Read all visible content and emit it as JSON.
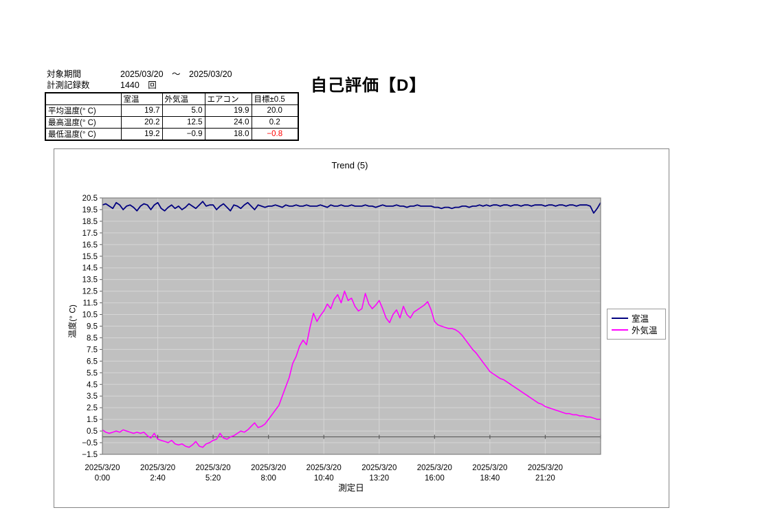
{
  "header": {
    "period_label": "対象期間",
    "period_value": "2025/03/20　～　2025/03/20",
    "count_label": "計測記録数",
    "count_value": "1440　回",
    "evaluation_title": "自己評価【D】"
  },
  "stats_table": {
    "columns": [
      "",
      "室温",
      "外気温",
      "エアコン",
      "目標±0.5"
    ],
    "rows": [
      {
        "label": "平均温度(° C)",
        "values": [
          "19.7",
          "5.0",
          "19.9",
          "20.0"
        ]
      },
      {
        "label": "最高温度(° C)",
        "values": [
          "20.2",
          "12.5",
          "24.0",
          "0.2"
        ]
      },
      {
        "label": "最低温度(° C)",
        "values": [
          "19.2",
          "−0.9",
          "18.0",
          "−0.8"
        ]
      }
    ],
    "highlight_color": "#ccffcc",
    "negative_color": "#ff0000"
  },
  "chart_data": {
    "type": "line",
    "title": "Trend (5)",
    "xlabel": "測定日",
    "ylabel": "温度(° C)",
    "ylim": [
      -1.5,
      20.5
    ],
    "y_tick_step": 1.0,
    "x_range_minutes": [
      0,
      1440
    ],
    "x_step_minutes": 10,
    "x_ticks": [
      {
        "date": "2025/3/20",
        "time": "0:00",
        "minutes": 0
      },
      {
        "date": "2025/3/20",
        "time": "2:40",
        "minutes": 160
      },
      {
        "date": "2025/3/20",
        "time": "5:20",
        "minutes": 320
      },
      {
        "date": "2025/3/20",
        "time": "8:00",
        "minutes": 480
      },
      {
        "date": "2025/3/20",
        "time": "10:40",
        "minutes": 640
      },
      {
        "date": "2025/3/20",
        "time": "13:20",
        "minutes": 800
      },
      {
        "date": "2025/3/20",
        "time": "16:00",
        "minutes": 960
      },
      {
        "date": "2025/3/20",
        "time": "18:40",
        "minutes": 1120
      },
      {
        "date": "2025/3/20",
        "time": "21:20",
        "minutes": 1280
      }
    ],
    "grid": true,
    "legend_position": "right",
    "plot_bg": "#c0c0c0",
    "grid_color": "#d6d6d6",
    "border_color": "#828282",
    "zero_axis_color": "#5c5c5c",
    "series": [
      {
        "name": "室温",
        "color": "#000080",
        "values": [
          19.9,
          20.0,
          19.8,
          19.6,
          20.1,
          19.9,
          19.5,
          19.8,
          19.9,
          19.7,
          19.4,
          19.8,
          20.0,
          19.9,
          19.5,
          19.9,
          20.1,
          19.6,
          19.4,
          19.7,
          19.9,
          19.6,
          19.8,
          19.5,
          19.7,
          20.0,
          19.8,
          19.6,
          19.9,
          20.2,
          19.8,
          19.9,
          19.9,
          19.5,
          19.8,
          20.0,
          19.7,
          19.4,
          19.9,
          19.8,
          19.6,
          19.9,
          20.1,
          19.8,
          19.5,
          19.9,
          19.8,
          19.7,
          19.8,
          19.8,
          19.9,
          19.8,
          19.7,
          19.9,
          19.8,
          19.8,
          19.9,
          19.8,
          19.8,
          19.9,
          19.8,
          19.8,
          19.8,
          19.9,
          19.8,
          19.7,
          19.9,
          19.8,
          19.8,
          19.9,
          19.8,
          19.8,
          19.9,
          19.8,
          19.8,
          19.8,
          19.9,
          19.8,
          19.8,
          19.7,
          19.8,
          19.9,
          19.8,
          19.8,
          19.8,
          19.9,
          19.8,
          19.8,
          19.7,
          19.8,
          19.8,
          19.9,
          19.8,
          19.8,
          19.8,
          19.8,
          19.7,
          19.7,
          19.6,
          19.7,
          19.7,
          19.6,
          19.7,
          19.7,
          19.8,
          19.8,
          19.7,
          19.8,
          19.8,
          19.9,
          19.8,
          19.9,
          19.8,
          19.9,
          19.9,
          19.8,
          19.9,
          19.9,
          19.8,
          19.9,
          19.9,
          19.8,
          19.9,
          19.9,
          19.8,
          19.9,
          19.9,
          19.9,
          19.8,
          19.9,
          19.9,
          19.8,
          19.9,
          19.9,
          19.8,
          19.9,
          19.9,
          19.8,
          19.9,
          19.9,
          19.9,
          19.8,
          19.2,
          19.6,
          20.1
        ]
      },
      {
        "name": "外気温",
        "color": "#ff00ff",
        "values": [
          0.6,
          0.4,
          0.3,
          0.4,
          0.5,
          0.4,
          0.6,
          0.5,
          0.4,
          0.3,
          0.4,
          0.3,
          0.4,
          0.1,
          -0.1,
          0.3,
          -0.2,
          -0.3,
          -0.4,
          -0.5,
          -0.3,
          -0.6,
          -0.7,
          -0.6,
          -0.8,
          -0.9,
          -0.7,
          -0.4,
          -0.8,
          -0.9,
          -0.6,
          -0.5,
          -0.3,
          -0.2,
          0.3,
          -0.1,
          -0.2,
          0.0,
          0.1,
          0.3,
          0.5,
          0.4,
          0.6,
          0.9,
          1.2,
          0.8,
          0.9,
          1.1,
          1.5,
          1.9,
          2.3,
          2.7,
          3.5,
          4.3,
          5.1,
          6.3,
          6.9,
          7.8,
          8.3,
          7.9,
          9.4,
          10.6,
          9.9,
          10.4,
          10.8,
          11.4,
          11.0,
          11.8,
          12.2,
          11.5,
          12.5,
          11.7,
          11.9,
          11.2,
          10.8,
          11.0,
          12.3,
          11.4,
          11.0,
          11.3,
          11.7,
          11.0,
          10.2,
          9.8,
          10.5,
          10.9,
          10.2,
          11.2,
          10.5,
          10.2,
          10.7,
          10.9,
          11.1,
          11.3,
          11.6,
          10.9,
          9.9,
          9.6,
          9.5,
          9.4,
          9.3,
          9.3,
          9.2,
          9.0,
          8.7,
          8.3,
          7.9,
          7.5,
          7.2,
          6.8,
          6.4,
          6.0,
          5.6,
          5.4,
          5.2,
          5.0,
          4.9,
          4.7,
          4.5,
          4.3,
          4.1,
          3.9,
          3.7,
          3.5,
          3.3,
          3.1,
          2.9,
          2.8,
          2.6,
          2.5,
          2.4,
          2.3,
          2.2,
          2.1,
          2.0,
          2.0,
          1.9,
          1.9,
          1.8,
          1.8,
          1.7,
          1.7,
          1.6,
          1.5,
          1.5
        ]
      }
    ]
  }
}
